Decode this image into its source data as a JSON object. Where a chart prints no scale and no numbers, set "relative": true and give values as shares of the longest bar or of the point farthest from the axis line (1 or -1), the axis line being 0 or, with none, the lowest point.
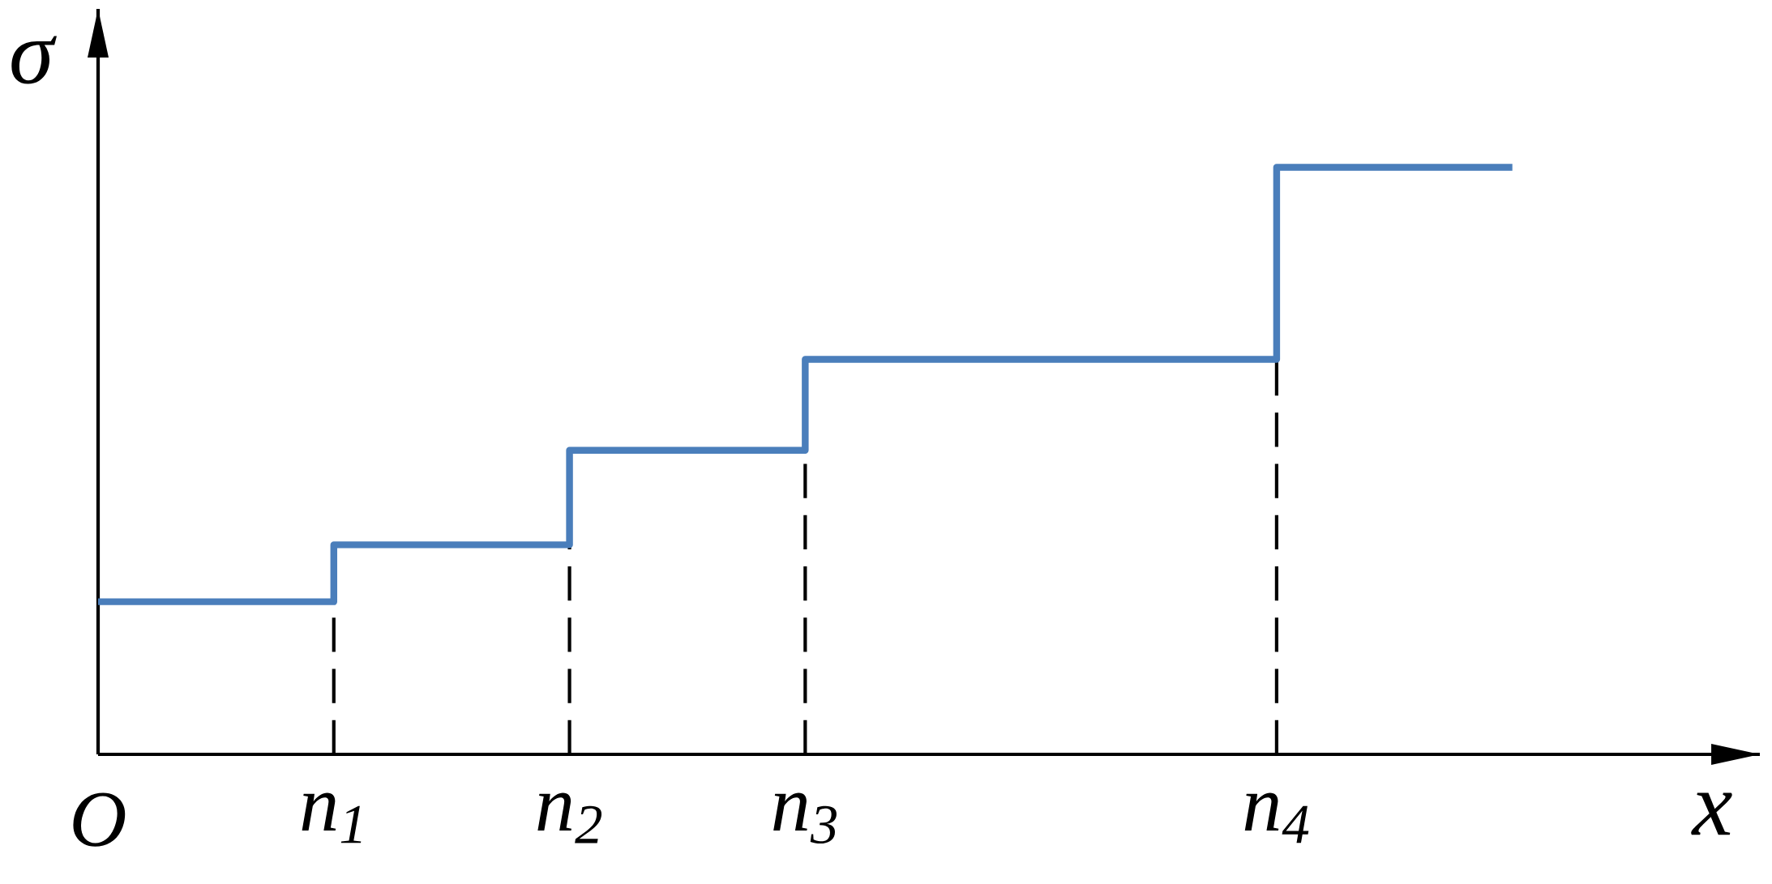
{
  "chart_data": {
    "type": "step",
    "relative": true,
    "xlabel": "x",
    "ylabel": "σ",
    "categories": [
      "O",
      "n$_{1}$",
      "n$_{2}$",
      "n$_{3}$",
      null,
      "n$_{4}$",
      null
    ],
    "series": [
      {
        "color": "#4a7ebb",
        "values": [
          0.26,
          0.357,
          0.518,
          0.673,
          0.673,
          1,
          1
        ]
      }
    ],
    "ref_lines": [
      {
        "axis": "x",
        "value": "n$_{1}$",
        "color": "#000000",
        "line_style": "dashed"
      },
      {
        "axis": "x",
        "value": "n$_{2}$",
        "color": "#000000",
        "line_style": "dashed"
      },
      {
        "axis": "x",
        "value": "n$_{3}$",
        "color": "#000000",
        "line_style": "dashed"
      },
      {
        "axis": "x",
        "value": "n$_{4}$",
        "color": "#000000",
        "line_style": "dashed"
      }
    ]
  }
}
